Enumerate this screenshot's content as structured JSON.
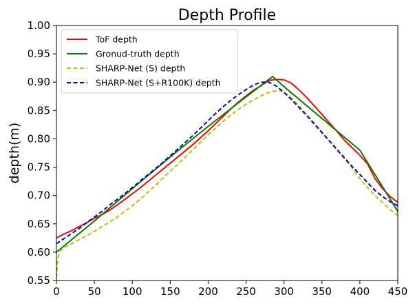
{
  "chart_data": {
    "type": "line",
    "title": "Depth Profile",
    "xlabel": "",
    "ylabel": "depth(m)",
    "xlim": [
      0,
      450
    ],
    "ylim": [
      0.55,
      1.0
    ],
    "xticks": [
      "0",
      "50",
      "100",
      "150",
      "200",
      "250",
      "300",
      "350",
      "400",
      "450"
    ],
    "yticks": [
      "0.55",
      "0.60",
      "0.65",
      "0.70",
      "0.75",
      "0.80",
      "0.85",
      "0.90",
      "0.95",
      "1.00"
    ],
    "grid": false,
    "legend_position": "top-left",
    "series": [
      {
        "name": "ToF depth",
        "color": "#ff0000",
        "dash": "solid",
        "x": [
          0,
          10,
          20,
          30,
          40,
          50,
          60,
          70,
          80,
          90,
          100,
          110,
          120,
          130,
          140,
          150,
          160,
          170,
          180,
          190,
          200,
          210,
          220,
          230,
          240,
          250,
          260,
          270,
          280,
          290,
          300,
          310,
          320,
          330,
          340,
          350,
          360,
          370,
          380,
          390,
          400,
          410,
          420,
          430,
          440,
          450
        ],
        "values": [
          0.625,
          0.632,
          0.638,
          0.645,
          0.652,
          0.66,
          0.666,
          0.674,
          0.683,
          0.693,
          0.703,
          0.713,
          0.724,
          0.735,
          0.746,
          0.757,
          0.768,
          0.779,
          0.79,
          0.802,
          0.814,
          0.827,
          0.84,
          0.853,
          0.865,
          0.876,
          0.886,
          0.894,
          0.903,
          0.905,
          0.904,
          0.898,
          0.886,
          0.873,
          0.858,
          0.843,
          0.828,
          0.813,
          0.797,
          0.784,
          0.771,
          0.756,
          0.73,
          0.712,
          0.698,
          0.688
        ]
      },
      {
        "name": "Gronud-truth depth",
        "color": "#008000",
        "dash": "solid",
        "x": [
          0,
          50,
          100,
          150,
          200,
          250,
          285,
          300,
          350,
          400,
          450
        ],
        "values": [
          0.6,
          0.655,
          0.712,
          0.768,
          0.822,
          0.874,
          0.91,
          0.892,
          0.836,
          0.78,
          0.672
        ]
      },
      {
        "name": "SHARP-Net (S) depth",
        "color": "#bfbf00",
        "dash": "dashed",
        "x": [
          0,
          2,
          5,
          10,
          20,
          30,
          40,
          50,
          60,
          70,
          80,
          90,
          100,
          110,
          120,
          130,
          140,
          150,
          160,
          170,
          180,
          190,
          200,
          210,
          220,
          230,
          240,
          250,
          260,
          270,
          280,
          290,
          295,
          300,
          310,
          320,
          330,
          340,
          350,
          360,
          370,
          380,
          390,
          400,
          410,
          420,
          430,
          440,
          450
        ],
        "values": [
          0.555,
          0.59,
          0.602,
          0.608,
          0.615,
          0.622,
          0.629,
          0.637,
          0.645,
          0.653,
          0.662,
          0.672,
          0.682,
          0.693,
          0.705,
          0.717,
          0.73,
          0.743,
          0.755,
          0.768,
          0.781,
          0.794,
          0.807,
          0.819,
          0.831,
          0.842,
          0.852,
          0.861,
          0.869,
          0.876,
          0.882,
          0.885,
          0.885,
          0.882,
          0.872,
          0.858,
          0.843,
          0.828,
          0.812,
          0.796,
          0.78,
          0.764,
          0.748,
          0.73,
          0.714,
          0.7,
          0.687,
          0.675,
          0.665
        ]
      },
      {
        "name": "SHARP-Net (S+R100K) depth",
        "color": "#0000cc",
        "dash": "dashed",
        "x": [
          0,
          10,
          20,
          30,
          40,
          50,
          60,
          70,
          80,
          90,
          100,
          110,
          120,
          130,
          140,
          150,
          160,
          170,
          180,
          190,
          200,
          210,
          220,
          230,
          240,
          250,
          260,
          270,
          280,
          290,
          300,
          310,
          320,
          330,
          340,
          350,
          360,
          370,
          380,
          390,
          400,
          410,
          420,
          430,
          440,
          450
        ],
        "values": [
          0.615,
          0.624,
          0.633,
          0.642,
          0.652,
          0.662,
          0.672,
          0.683,
          0.693,
          0.703,
          0.714,
          0.725,
          0.736,
          0.747,
          0.758,
          0.77,
          0.782,
          0.794,
          0.806,
          0.819,
          0.832,
          0.845,
          0.857,
          0.868,
          0.878,
          0.887,
          0.895,
          0.9,
          0.9,
          0.893,
          0.882,
          0.869,
          0.855,
          0.841,
          0.826,
          0.811,
          0.796,
          0.781,
          0.766,
          0.751,
          0.737,
          0.723,
          0.709,
          0.698,
          0.689,
          0.682
        ]
      }
    ]
  }
}
